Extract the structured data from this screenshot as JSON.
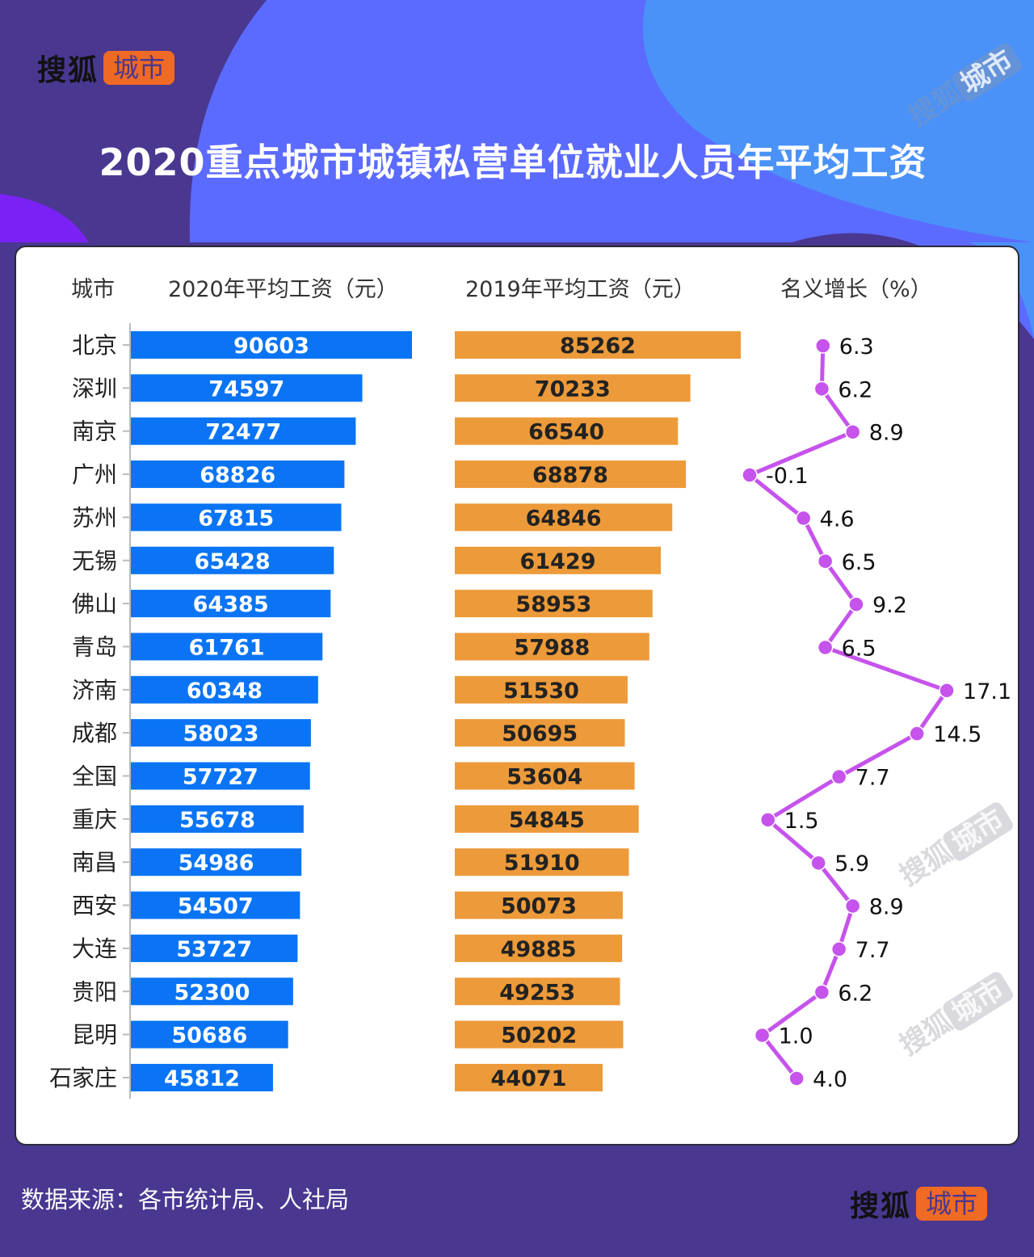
{
  "logo": {
    "brand": "搜狐",
    "tag": "城市"
  },
  "title": "2020重点城市城镇私营单位就业人员年平均工资",
  "headers": {
    "city": "城市",
    "wage2020": "2020年平均工资（元）",
    "wage2019": "2019年平均工资（元）",
    "growth": "名义增长（%）"
  },
  "source": "数据来源：各市统计局、人社局",
  "watermark": "搜狐城市",
  "colors": {
    "bar2020": "#0a74f5",
    "bar2019": "#ec9a3a",
    "growth_line": "#c653ec"
  },
  "chart_data": {
    "type": "bar",
    "orientation": "horizontal",
    "categories": [
      "北京",
      "深圳",
      "南京",
      "广州",
      "苏州",
      "无锡",
      "佛山",
      "青岛",
      "济南",
      "成都",
      "全国",
      "重庆",
      "南昌",
      "西安",
      "大连",
      "贵阳",
      "昆明",
      "石家庄"
    ],
    "series": [
      {
        "name": "2020年平均工资（元）",
        "type": "bar",
        "values": [
          90603,
          74597,
          72477,
          68826,
          67815,
          65428,
          64385,
          61761,
          60348,
          58023,
          57727,
          55678,
          54986,
          54507,
          53727,
          52300,
          50686,
          45812
        ]
      },
      {
        "name": "2019年平均工资（元）",
        "type": "bar",
        "values": [
          85262,
          70233,
          66540,
          68878,
          64846,
          61429,
          58953,
          57988,
          51530,
          50695,
          53604,
          54845,
          51910,
          50073,
          49885,
          49253,
          50202,
          44071
        ]
      },
      {
        "name": "名义增长（%）",
        "type": "line",
        "values": [
          "6.3",
          "6.2",
          "8.9",
          "-0.1",
          "4.6",
          "6.5",
          "9.2",
          "6.5",
          "17.1",
          "14.5",
          "7.7",
          "1.5",
          "5.9",
          "8.9",
          "7.7",
          "6.2",
          "1.0",
          "4.0"
        ]
      }
    ],
    "data_labels": true,
    "grid": false
  }
}
